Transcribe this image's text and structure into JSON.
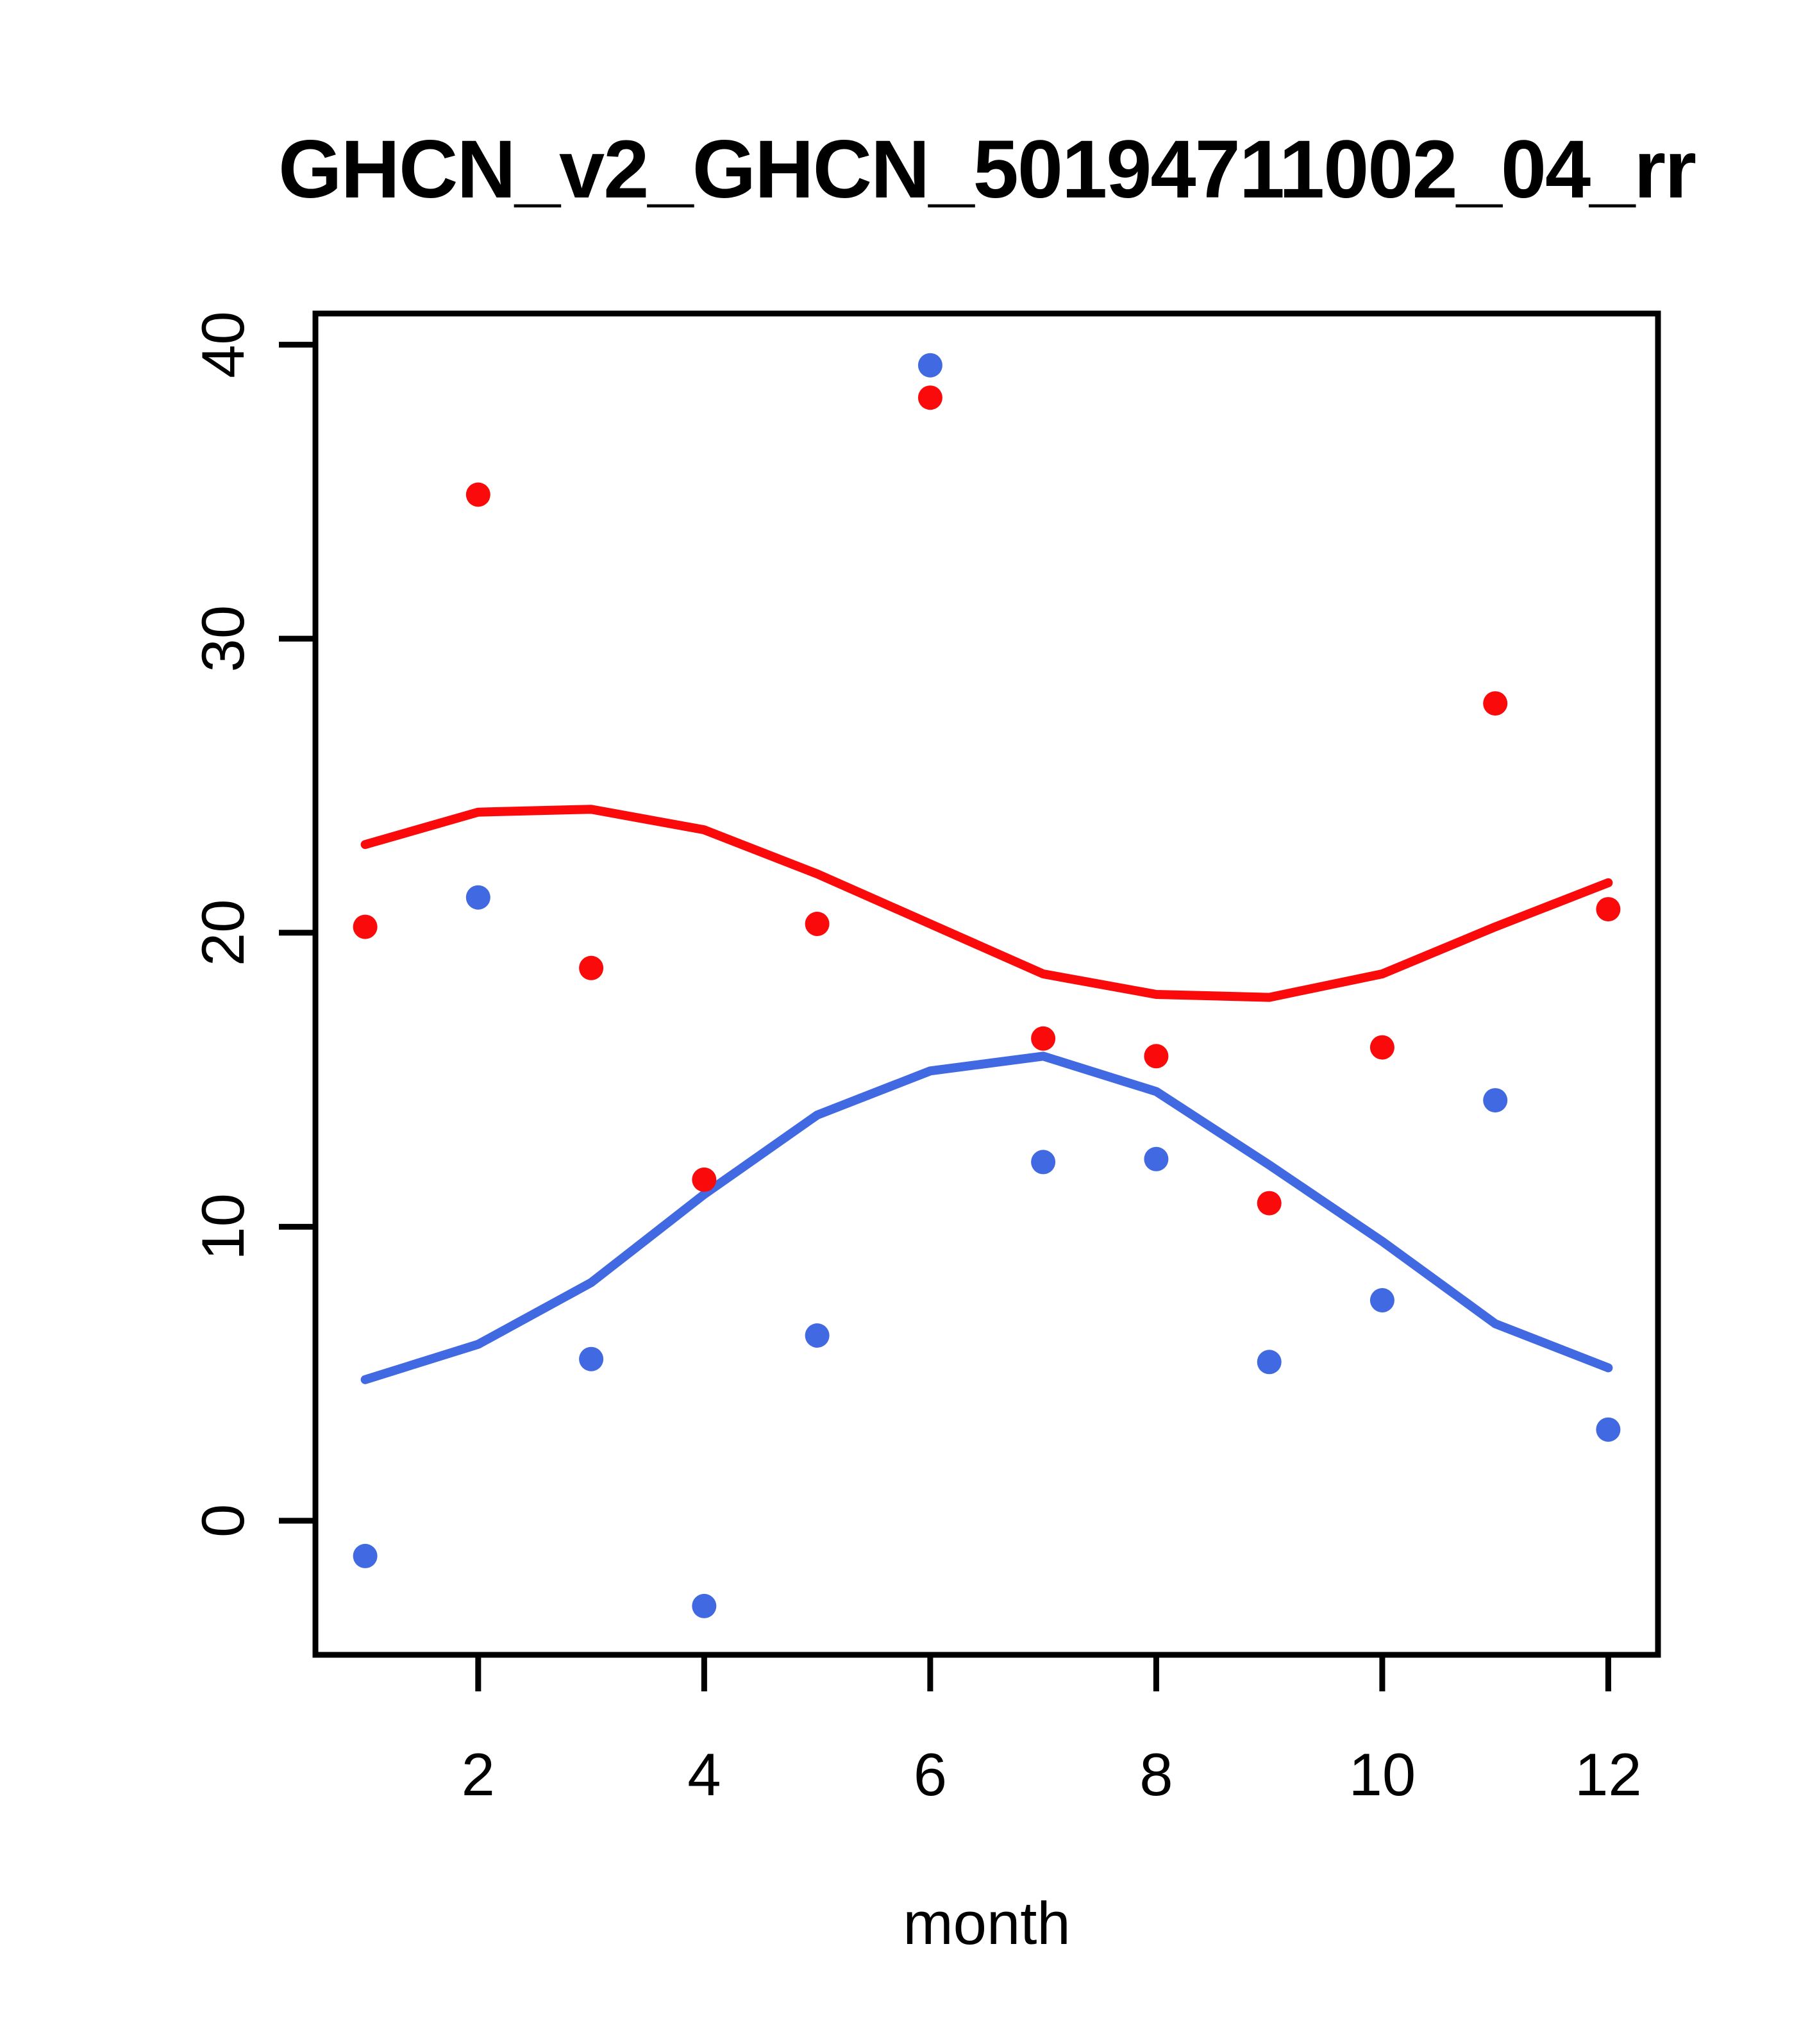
{
  "title": "GHCN_v2_GHCN_50194711002_04_rr",
  "chart_data": {
    "type": "scatter",
    "title": "GHCN_v2_GHCN_50194711002_04_rr",
    "xlabel": "month",
    "ylabel": "",
    "x": [
      1,
      2,
      3,
      4,
      5,
      6,
      7,
      8,
      9,
      10,
      11,
      12
    ],
    "x_tick_labels": [
      "2",
      "4",
      "6",
      "8",
      "10",
      "12"
    ],
    "x_tick_values": [
      2,
      4,
      6,
      8,
      10,
      12
    ],
    "y_tick_labels": [
      "0",
      "10",
      "20",
      "30",
      "40"
    ],
    "y_tick_values": [
      0,
      10,
      20,
      30,
      40
    ],
    "xlim": [
      0.56,
      12.44
    ],
    "ylim": [
      -4.56,
      41.06
    ],
    "grid": false,
    "legend_position": "none",
    "series": [
      {
        "name": "red-points",
        "kind": "points",
        "color": "#FA0A0A",
        "values": [
          20.2,
          34.9,
          18.8,
          11.6,
          20.3,
          38.2,
          16.4,
          15.8,
          10.8,
          16.1,
          27.8,
          20.8
        ]
      },
      {
        "name": "blue-points",
        "kind": "points",
        "color": "#4169E1",
        "values": [
          -1.2,
          21.2,
          5.5,
          -2.9,
          6.3,
          39.3,
          12.2,
          12.3,
          5.4,
          7.5,
          14.3,
          3.1
        ]
      },
      {
        "name": "red-smooth-line",
        "kind": "line",
        "color": "#FA0A0A",
        "values": [
          23.0,
          24.1,
          24.2,
          23.5,
          22.0,
          20.3,
          18.6,
          17.9,
          17.8,
          18.6,
          20.2,
          21.7
        ]
      },
      {
        "name": "blue-smooth-line",
        "kind": "line",
        "color": "#4169E1",
        "values": [
          4.8,
          6.0,
          8.1,
          11.1,
          13.8,
          15.3,
          15.8,
          14.6,
          12.1,
          9.5,
          6.7,
          5.2
        ]
      }
    ]
  },
  "colors": {
    "red": "#FA0A0A",
    "blue": "#4169E1",
    "axis": "#000000",
    "background": "#ffffff"
  }
}
